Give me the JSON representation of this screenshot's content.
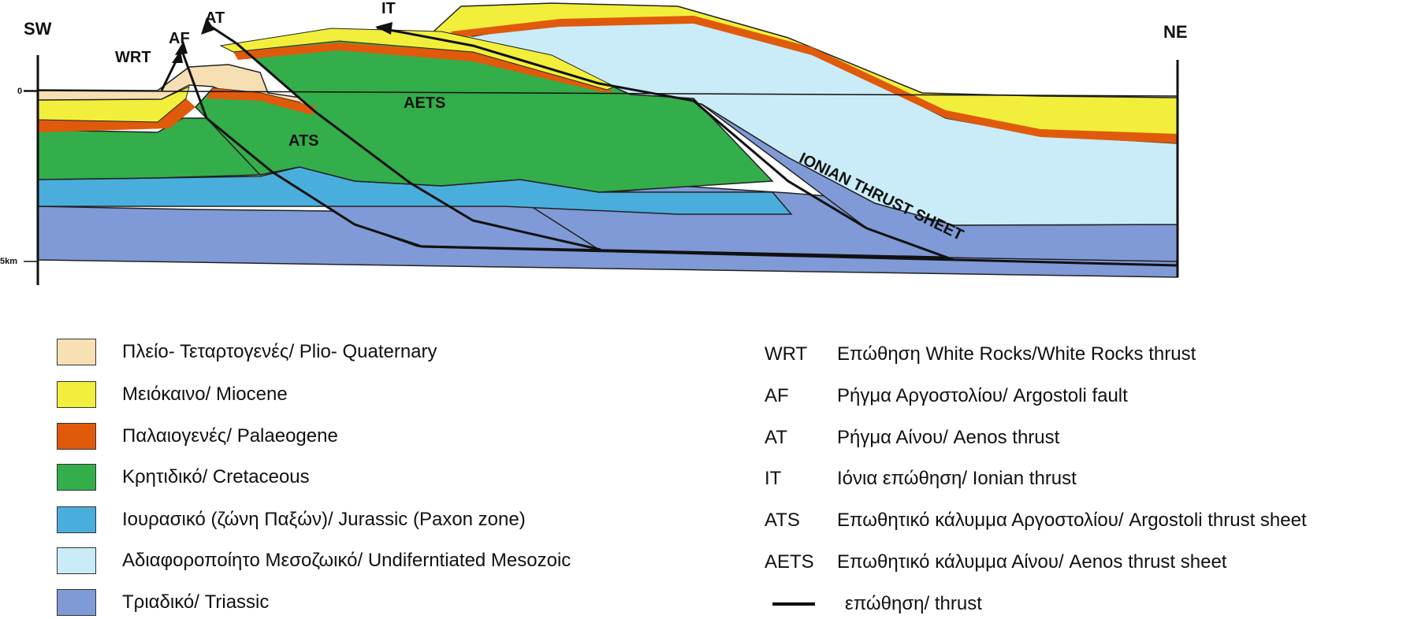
{
  "orientation": {
    "left": "SW",
    "right": "NE"
  },
  "depth_ticks": {
    "top": "0",
    "bottom": "5km"
  },
  "faults": [
    "WRT",
    "AF",
    "AT",
    "IT"
  ],
  "units_on_section": {
    "ats": "ATS",
    "aets": "AETS",
    "ionian": "IONIAN THRUST SHEET"
  },
  "colors": {
    "plio_quaternary": "#f6dfb2",
    "miocene": "#f1ef3b",
    "palaeogene": "#e05a0c",
    "cretaceous": "#33ae4a",
    "jurassic": "#4aaedd",
    "mesozoic": "#c9ecf8",
    "triassic": "#7f9ad6"
  },
  "legend_units": [
    {
      "key": "plio_quaternary",
      "label": "Πλείο- Τεταρτογενές/ Plio- Quaternary"
    },
    {
      "key": "miocene",
      "label": "Μειόκαινο/ Miocene"
    },
    {
      "key": "palaeogene",
      "label": "Παλαιογενές/ Palaeogene"
    },
    {
      "key": "cretaceous",
      "label": "Κρητιδικό/ Cretaceous"
    },
    {
      "key": "jurassic",
      "label": "Ιουρασικό (ζώνη Παξών)/ Jurassic (Paxon zone)"
    },
    {
      "key": "mesozoic",
      "label": "Αδιαφοροποίητο Μεσοζωικό/ Undiferntiated Mesozoic"
    },
    {
      "key": "triassic",
      "label": "Τριαδικό/ Triassic"
    }
  ],
  "legend_abbreviations": [
    {
      "abbr": "WRT",
      "label": "Επώθηση White Rocks/White Rocks thrust"
    },
    {
      "abbr": "AF",
      "label": "Ρήγμα Αργοστολίου/ Argostoli fault"
    },
    {
      "abbr": "AT",
      "label": "Ρήγμα Αίνου/ Aenos thrust"
    },
    {
      "abbr": "IT",
      "label": "Ιόνια επώθηση/ Ionian thrust"
    },
    {
      "abbr": "ATS",
      "label": "Επωθητικό κάλυμμα Αργοστολίου/ Argostoli thrust sheet"
    },
    {
      "abbr": "AETS",
      "label": "Επωθητικό κάλυμμα Αίνου/ Aenos thrust sheet"
    }
  ],
  "legend_thrust": "επώθηση/ thrust"
}
